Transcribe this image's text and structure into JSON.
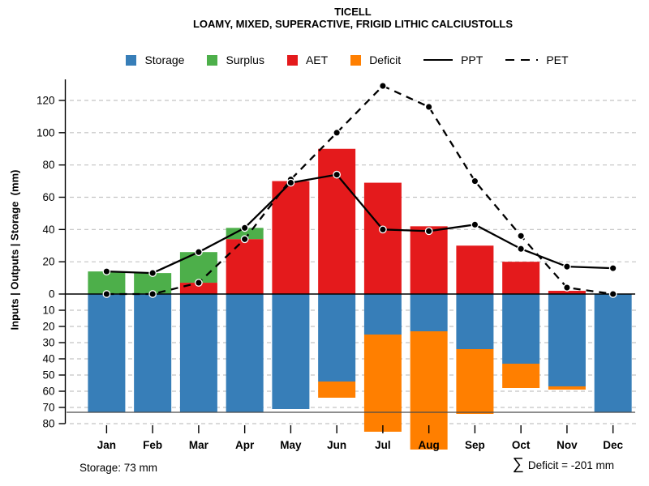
{
  "header": {
    "title": "TICELL",
    "subtitle": "LOAMY, MIXED, SUPERACTIVE, FRIGID LITHIC CALCIUSTOLLS"
  },
  "legend": {
    "items": [
      {
        "label": "Storage",
        "swatch": "#377EB8"
      },
      {
        "label": "Surplus",
        "swatch": "#4DAF4A"
      },
      {
        "label": "AET",
        "swatch": "#E41A1C"
      },
      {
        "label": "Deficit",
        "swatch": "#FF7F00"
      },
      {
        "label": "PPT",
        "line": "solid"
      },
      {
        "label": "PET",
        "line": "dashed"
      }
    ]
  },
  "y_axis": {
    "label": "Inputs | Outputs | Storage  (mm)",
    "upper_ticks": [
      0,
      20,
      40,
      60,
      80,
      100,
      120
    ],
    "lower_ticks": [
      10,
      20,
      30,
      40,
      50,
      60,
      70,
      80
    ]
  },
  "footer": {
    "storage_note": "Storage: 73 mm",
    "sigma": "∑",
    "deficit_note": "Deficit = -201 mm"
  },
  "chart_data": {
    "type": "bar",
    "subtype": "monthly water-balance combo (stacked bars above/below zero + two lines)",
    "title": "TICELL",
    "subtitle": "LOAMY, MIXED, SUPERACTIVE, FRIGID LITHIC CALCIUSTOLLS",
    "categories": [
      "Jan",
      "Feb",
      "Mar",
      "Apr",
      "May",
      "Jun",
      "Jul",
      "Aug",
      "Sep",
      "Oct",
      "Nov",
      "Dec"
    ],
    "series": [
      {
        "name": "Surplus",
        "type": "bar",
        "color": "#4DAF4A",
        "stack": "above-zero-on-top-of-AET",
        "values": [
          14,
          13,
          19,
          7,
          0,
          0,
          0,
          0,
          0,
          0,
          0,
          0
        ]
      },
      {
        "name": "AET",
        "type": "bar",
        "color": "#E41A1C",
        "stack": "above-zero-base",
        "values": [
          0,
          0,
          7,
          34,
          70,
          90,
          69,
          42,
          30,
          20,
          2,
          0
        ]
      },
      {
        "name": "Storage",
        "type": "bar",
        "color": "#377EB8",
        "stack": "below-zero-base",
        "values": [
          73,
          73,
          73,
          73,
          71,
          54,
          25,
          23,
          34,
          43,
          57,
          73
        ]
      },
      {
        "name": "Deficit",
        "type": "bar",
        "color": "#FF7F00",
        "stack": "below-zero-under-Storage",
        "values": [
          0,
          0,
          0,
          0,
          0,
          10,
          60,
          73,
          40,
          15,
          2,
          0
        ]
      },
      {
        "name": "PPT",
        "type": "line",
        "style": "solid",
        "color": "#000000",
        "marker": "filled-circle",
        "values": [
          14,
          13,
          26,
          41,
          69,
          74,
          40,
          39,
          43,
          28,
          17,
          16
        ]
      },
      {
        "name": "PET",
        "type": "line",
        "style": "dashed",
        "color": "#000000",
        "marker": "filled-circle",
        "values": [
          0,
          0,
          7,
          34,
          71,
          100,
          129,
          116,
          70,
          36,
          4,
          0
        ]
      }
    ],
    "ylabel": "Inputs | Outputs | Storage  (mm)",
    "upper_axis_range": [
      0,
      133
    ],
    "lower_axis_range": [
      0,
      80
    ],
    "storage_capacity_mm": 73,
    "grid": "dashed horizontal gridlines; every 20 above zero, every 10 below zero",
    "legend_position": "top",
    "annotations": {
      "storage": "Storage: 73 mm",
      "total_deficit": "∑ Deficit = -201 mm"
    }
  }
}
